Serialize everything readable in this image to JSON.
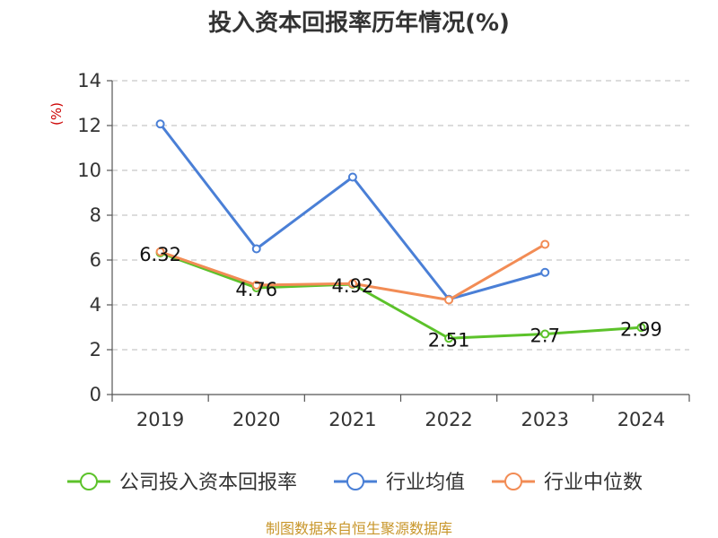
{
  "chart_data": {
    "type": "line",
    "title": "投入资本回报率历年情况(%)",
    "ylabel": "(%)",
    "xlabel": "",
    "ylim": [
      0,
      14
    ],
    "yticks": [
      0,
      2,
      4,
      6,
      8,
      10,
      12,
      14
    ],
    "grid": true,
    "legend_position": "bottom",
    "categories": [
      "2019",
      "2020",
      "2021",
      "2022",
      "2023",
      "2024"
    ],
    "series": [
      {
        "name": "公司投入资本回报率",
        "color": "#5cc22a",
        "values": [
          6.32,
          4.76,
          4.92,
          2.51,
          2.7,
          2.99
        ],
        "labels": [
          "6.32",
          "4.76",
          "4.92",
          "2.51",
          "2.7",
          "2.99"
        ]
      },
      {
        "name": "行业均值",
        "color": "#4a7fd6",
        "values": [
          12.07,
          6.5,
          9.7,
          4.25,
          5.45,
          null
        ]
      },
      {
        "name": "行业中位数",
        "color": "#f28c55",
        "values": [
          6.37,
          4.88,
          4.95,
          4.22,
          6.7,
          null
        ]
      }
    ]
  },
  "source_text": "制图数据来自恒生聚源数据库"
}
